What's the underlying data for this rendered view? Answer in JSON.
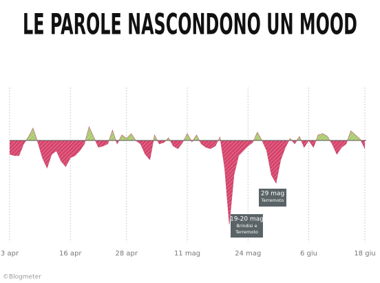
{
  "chart_data": {
    "type": "area",
    "title": "LE PAROLE NASCONDONO UN MOOD",
    "categories": [
      "3 apr",
      null,
      null,
      null,
      null,
      null,
      null,
      null,
      null,
      null,
      null,
      null,
      null,
      "16 apr",
      null,
      null,
      null,
      null,
      null,
      null,
      null,
      null,
      null,
      null,
      null,
      "28 apr",
      null,
      null,
      null,
      null,
      null,
      null,
      null,
      null,
      null,
      null,
      null,
      null,
      "11 mag",
      null,
      null,
      null,
      null,
      null,
      null,
      null,
      null,
      null,
      null,
      null,
      null,
      "24 mag",
      null,
      null,
      null,
      null,
      null,
      null,
      null,
      null,
      null,
      null,
      null,
      null,
      "6 giu",
      null,
      null,
      null,
      null,
      null,
      null,
      null,
      null,
      null,
      null,
      null,
      "18 giu"
    ],
    "values": [
      -20,
      -22,
      -22,
      -5,
      5,
      18,
      -2,
      -25,
      -40,
      -20,
      -15,
      -30,
      -38,
      -25,
      -22,
      -15,
      -5,
      20,
      5,
      -10,
      -8,
      -5,
      15,
      -5,
      8,
      3,
      10,
      0,
      -5,
      -20,
      -28,
      8,
      -5,
      -3,
      4,
      -8,
      -12,
      -3,
      10,
      -2,
      8,
      -5,
      -10,
      -12,
      -8,
      5,
      -40,
      -122,
      -50,
      -22,
      -15,
      -8,
      -3,
      12,
      0,
      -15,
      -50,
      -62,
      -28,
      -10,
      3,
      -5,
      6,
      -10,
      0,
      -10,
      8,
      10,
      6,
      -5,
      -20,
      -10,
      -5,
      14,
      8,
      2,
      -12
    ],
    "positive_color": "#a9c96f",
    "negative_color": "#d6426a",
    "ylim": [
      -130,
      75
    ],
    "grid": true,
    "annotations": [
      {
        "lines": [
          "29 mag",
          "Terremoto"
        ]
      },
      {
        "lines": [
          "19-20 mag",
          "Brindisi e",
          "Terremoto"
        ]
      }
    ],
    "source": "©Blogmeter"
  }
}
